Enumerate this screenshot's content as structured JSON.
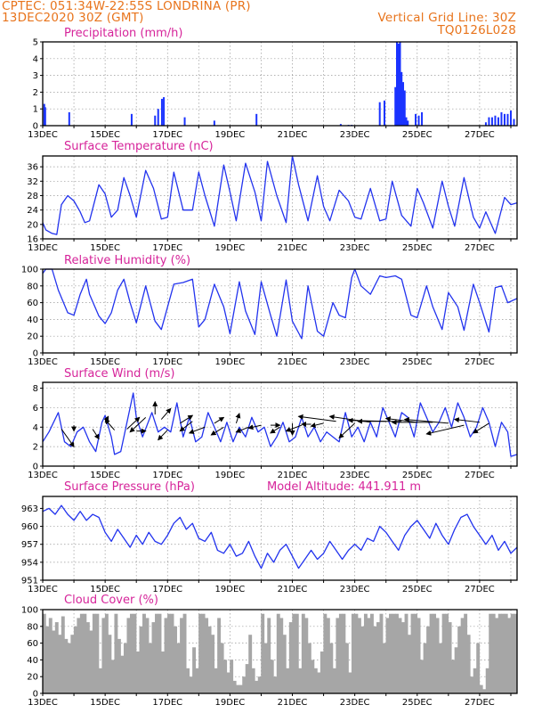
{
  "header": {
    "source_line": "CPTEC:   051:34W-22:55S   LONDRINA (PR)",
    "init_line": "13DEC2020 30Z (GMT)",
    "grid_note": "Vertical Grid Line: 30Z",
    "run_code": "TQ0126L028"
  },
  "colors": {
    "line": "#2233ee",
    "bar": "#1a33ff",
    "cloud": "#a6a6a6",
    "title": "#d6249a",
    "header": "#e8741c"
  },
  "date_labels": [
    "13DEC",
    "15DEC",
    "17DEC",
    "19DEC",
    "21DEC",
    "23DEC",
    "25DEC",
    "27DEC"
  ],
  "chart_data": [
    {
      "id": "precip",
      "type": "bar",
      "title": "Precipitation (mm/h)",
      "xlim": [
        0,
        15.2
      ],
      "ylim": [
        0,
        5
      ],
      "yticks": [
        0,
        1,
        2,
        3,
        4,
        5
      ],
      "x": [
        0.05,
        0.08,
        0.85,
        2.85,
        3.6,
        3.7,
        3.82,
        3.88,
        4.55,
        5.5,
        6.85,
        9.55,
        9.8,
        9.9,
        10.8,
        10.95,
        11.3,
        11.35,
        11.4,
        11.45,
        11.5,
        11.55,
        11.6,
        11.65,
        11.7,
        11.95,
        12.05,
        12.15,
        14.2,
        14.3,
        14.4,
        14.5,
        14.6,
        14.7,
        14.8,
        14.9,
        15.0,
        15.1
      ],
      "values": [
        1.3,
        1.1,
        0.8,
        0.7,
        0.6,
        1.0,
        1.6,
        1.7,
        0.5,
        0.3,
        0.7,
        0.1,
        0.05,
        0.05,
        1.4,
        1.5,
        2.3,
        5.0,
        4.9,
        5.0,
        3.2,
        2.6,
        2.1,
        0.5,
        0.3,
        0.7,
        0.6,
        0.8,
        0.2,
        0.5,
        0.5,
        0.6,
        0.5,
        0.8,
        0.7,
        0.7,
        0.9,
        0.4
      ]
    },
    {
      "id": "temp",
      "type": "line",
      "title": "Surface Temperature (nC)",
      "xlim": [
        0,
        15.2
      ],
      "ylim": [
        16,
        39
      ],
      "yticks": [
        16,
        20,
        24,
        28,
        32,
        36
      ],
      "x": [
        0,
        0.1,
        0.3,
        0.45,
        0.6,
        0.8,
        1.0,
        1.2,
        1.35,
        1.5,
        1.8,
        2.0,
        2.2,
        2.4,
        2.6,
        2.8,
        3.0,
        3.3,
        3.55,
        3.8,
        4.0,
        4.2,
        4.5,
        4.8,
        5.0,
        5.2,
        5.5,
        5.8,
        6.0,
        6.2,
        6.5,
        6.8,
        7.0,
        7.2,
        7.5,
        7.8,
        8.0,
        8.2,
        8.5,
        8.8,
        9.0,
        9.2,
        9.5,
        9.8,
        10.0,
        10.2,
        10.5,
        10.8,
        11.0,
        11.2,
        11.5,
        11.8,
        12.0,
        12.2,
        12.5,
        12.8,
        13.0,
        13.2,
        13.5,
        13.8,
        14.0,
        14.2,
        14.5,
        14.8,
        15.0,
        15.2
      ],
      "values": [
        20.5,
        18.5,
        17.5,
        17.2,
        25.5,
        28.0,
        26.5,
        23.5,
        20.5,
        21.0,
        31.0,
        28.5,
        22.0,
        24.0,
        33.0,
        28.0,
        22.0,
        35.0,
        30.0,
        21.5,
        22.0,
        34.5,
        24.0,
        24.0,
        34.5,
        28.0,
        19.5,
        36.5,
        29.0,
        21.0,
        37.0,
        29.0,
        21.0,
        37.5,
        28.0,
        20.5,
        39.0,
        31.0,
        21.0,
        33.5,
        25.0,
        21.0,
        29.5,
        26.5,
        22.0,
        21.5,
        30.0,
        21.0,
        21.5,
        32.0,
        22.5,
        19.5,
        30.0,
        26.0,
        19.0,
        32.0,
        25.0,
        19.5,
        33.0,
        22.0,
        19.0,
        23.5,
        17.5,
        27.5,
        25.5,
        26.0
      ]
    },
    {
      "id": "rh",
      "type": "line",
      "title": "Relative Humidity (%)",
      "xlim": [
        0,
        15.2
      ],
      "ylim": [
        0,
        100
      ],
      "yticks": [
        0,
        20,
        40,
        60,
        80,
        100
      ],
      "x": [
        0,
        0.1,
        0.3,
        0.5,
        0.8,
        1.0,
        1.2,
        1.4,
        1.5,
        1.8,
        2.0,
        2.2,
        2.4,
        2.6,
        2.8,
        3.0,
        3.3,
        3.6,
        3.8,
        4.0,
        4.2,
        4.5,
        4.8,
        5.0,
        5.2,
        5.5,
        5.8,
        6.0,
        6.3,
        6.5,
        6.8,
        7.0,
        7.3,
        7.5,
        7.8,
        8.0,
        8.3,
        8.5,
        8.8,
        9.0,
        9.3,
        9.5,
        9.7,
        9.9,
        10.0,
        10.2,
        10.5,
        10.8,
        11.0,
        11.3,
        11.5,
        11.8,
        12.0,
        12.3,
        12.5,
        12.8,
        13.0,
        13.3,
        13.5,
        13.8,
        14.0,
        14.3,
        14.5,
        14.7,
        14.9,
        15.2
      ],
      "values": [
        95,
        100,
        100,
        75,
        48,
        45,
        70,
        88,
        70,
        44,
        35,
        48,
        75,
        88,
        60,
        36,
        80,
        38,
        28,
        55,
        82,
        84,
        88,
        31,
        40,
        82,
        55,
        23,
        85,
        50,
        22,
        85,
        45,
        20,
        87,
        38,
        17,
        80,
        26,
        20,
        60,
        45,
        42,
        90,
        100,
        80,
        70,
        92,
        90,
        92,
        88,
        45,
        42,
        80,
        55,
        28,
        72,
        55,
        27,
        82,
        60,
        25,
        78,
        80,
        60,
        65
      ]
    },
    {
      "id": "wind",
      "type": "line",
      "title": "Surface Wind (m/s)",
      "xlim": [
        0,
        15.2
      ],
      "ylim": [
        0,
        8.6
      ],
      "yticks": [
        0,
        2,
        4,
        6,
        8
      ],
      "x": [
        0,
        0.2,
        0.5,
        0.7,
        0.9,
        1.1,
        1.3,
        1.5,
        1.7,
        1.9,
        2.0,
        2.2,
        2.3,
        2.5,
        2.7,
        2.9,
        3.0,
        3.2,
        3.5,
        3.7,
        3.9,
        4.1,
        4.3,
        4.5,
        4.7,
        4.9,
        5.1,
        5.3,
        5.5,
        5.7,
        5.9,
        6.1,
        6.3,
        6.5,
        6.7,
        6.9,
        7.1,
        7.3,
        7.5,
        7.7,
        7.9,
        8.1,
        8.3,
        8.5,
        8.7,
        8.9,
        9.1,
        9.3,
        9.5,
        9.7,
        9.9,
        10.1,
        10.3,
        10.5,
        10.7,
        10.9,
        11.1,
        11.3,
        11.5,
        11.7,
        11.9,
        12.1,
        12.3,
        12.5,
        12.7,
        12.9,
        13.1,
        13.3,
        13.5,
        13.7,
        13.9,
        14.1,
        14.3,
        14.5,
        14.7,
        14.9,
        15.0,
        15.2
      ],
      "values": [
        2.5,
        3.5,
        5.5,
        2.5,
        2.0,
        3.5,
        4.0,
        2.5,
        1.5,
        4.5,
        5.2,
        3.0,
        1.2,
        1.5,
        4.5,
        7.5,
        5.0,
        3.0,
        5.5,
        3.5,
        4.0,
        3.5,
        6.5,
        3.0,
        5.0,
        2.5,
        3.0,
        5.5,
        4.0,
        2.5,
        4.5,
        2.5,
        4.0,
        3.0,
        5.0,
        3.5,
        4.0,
        2.0,
        3.0,
        4.5,
        2.5,
        3.0,
        5.0,
        3.0,
        4.0,
        2.5,
        3.5,
        3.0,
        2.5,
        5.5,
        3.0,
        4.0,
        2.5,
        4.5,
        3.0,
        6.0,
        4.5,
        3.0,
        5.5,
        5.0,
        3.0,
        6.5,
        5.0,
        3.5,
        4.5,
        6.0,
        4.0,
        6.5,
        5.0,
        3.0,
        4.0,
        6.0,
        4.5,
        2.0,
        4.5,
        3.5,
        1.0,
        1.2
      ],
      "arrows": {
        "x": [
          0.6,
          1.0,
          1.6,
          2.0,
          2.3,
          2.7,
          3.0,
          3.3,
          3.6,
          3.8,
          4.0,
          4.4,
          4.8,
          5.2,
          5.5,
          5.8,
          6.2,
          6.6,
          7.0,
          7.3,
          7.6,
          8.0,
          8.3,
          8.6,
          9.0,
          9.4,
          10.0,
          10.5,
          11.0,
          11.5,
          12.0,
          12.5,
          13.0,
          13.5,
          14.0,
          14.3
        ],
        "y": [
          3.8,
          4.2,
          3.8,
          4.5,
          3.7,
          3.8,
          3.6,
          5.0,
          5.3,
          4.8,
          3.7,
          4.4,
          4.6,
          4.0,
          4.4,
          4.0,
          4.4,
          4.0,
          4.2,
          4.2,
          4.0,
          4.4,
          4.2,
          4.3,
          4.4,
          4.6,
          4.4,
          4.5,
          4.6,
          4.6,
          4.5,
          4.5,
          4.4,
          4.2,
          4.5,
          4.4
        ],
        "dx": [
          0.4,
          0.0,
          0.2,
          0.1,
          -0.3,
          0.4,
          0.3,
          -0.5,
          0.0,
          0.3,
          -0.3,
          0.4,
          -0.4,
          -0.5,
          0.3,
          -0.4,
          0.1,
          -0.4,
          -0.4,
          0.3,
          -0.3,
          0.0,
          -0.5,
          -0.3,
          -0.4,
          -1.2,
          -0.5,
          -1.3,
          -1.2,
          -1.4,
          -1.0,
          -1.3,
          -1.4,
          -1.2,
          -0.8,
          -0.5
        ],
        "dy": [
          -1.8,
          -0.6,
          -1.0,
          0.6,
          1.1,
          1.2,
          0.0,
          -1.5,
          1.3,
          1.1,
          -1.0,
          0.8,
          -1.0,
          -0.6,
          0.6,
          -0.8,
          1.0,
          -0.5,
          -0.3,
          0.0,
          -0.6,
          -1.2,
          -0.6,
          0.0,
          -0.3,
          0.5,
          -1.5,
          0.6,
          0.1,
          0.0,
          0.4,
          0.0,
          0.4,
          -0.9,
          0.3,
          -1.0
        ]
      }
    },
    {
      "id": "pres",
      "type": "line",
      "title": "Surface Pressure (hPa)",
      "annotation": "Model Altitude: 441.911 m",
      "xlim": [
        0,
        15.2
      ],
      "ylim": [
        951,
        965
      ],
      "yticks": [
        951,
        954,
        957,
        960,
        963
      ],
      "x": [
        0,
        0.2,
        0.4,
        0.6,
        0.8,
        1.0,
        1.2,
        1.4,
        1.6,
        1.8,
        2.0,
        2.2,
        2.4,
        2.6,
        2.8,
        3.0,
        3.2,
        3.4,
        3.6,
        3.8,
        4.0,
        4.2,
        4.4,
        4.6,
        4.8,
        5.0,
        5.2,
        5.4,
        5.6,
        5.8,
        6.0,
        6.2,
        6.4,
        6.6,
        6.8,
        7.0,
        7.2,
        7.4,
        7.6,
        7.8,
        8.0,
        8.2,
        8.4,
        8.6,
        8.8,
        9.0,
        9.2,
        9.4,
        9.6,
        9.8,
        10.0,
        10.2,
        10.4,
        10.6,
        10.8,
        11.0,
        11.2,
        11.4,
        11.6,
        11.8,
        12.0,
        12.2,
        12.4,
        12.6,
        12.8,
        13.0,
        13.2,
        13.4,
        13.6,
        13.8,
        14.0,
        14.2,
        14.4,
        14.6,
        14.8,
        15.0,
        15.2
      ],
      "values": [
        962.5,
        963.0,
        962.0,
        963.5,
        962.0,
        961.0,
        962.5,
        961.0,
        962.0,
        961.5,
        959.0,
        957.5,
        959.5,
        958.0,
        956.5,
        958.5,
        957.0,
        959.0,
        957.5,
        957.0,
        958.5,
        960.5,
        961.5,
        959.5,
        960.5,
        958.0,
        957.5,
        959.0,
        956.0,
        955.5,
        957.0,
        955.0,
        955.5,
        957.5,
        955.0,
        953.0,
        955.5,
        954.0,
        956.0,
        957.0,
        955.0,
        953.0,
        954.5,
        956.0,
        954.5,
        955.5,
        957.5,
        956.0,
        954.5,
        956.0,
        957.0,
        956.0,
        958.0,
        957.5,
        960.0,
        959.0,
        957.5,
        956.0,
        958.5,
        960.0,
        961.0,
        959.5,
        958.0,
        960.5,
        958.5,
        957.0,
        959.5,
        961.5,
        962.0,
        960.0,
        958.5,
        957.0,
        958.5,
        956.0,
        957.5,
        955.5,
        956.5
      ]
    },
    {
      "id": "cloud",
      "type": "bar",
      "title": "Cloud Cover (%)",
      "xlim": [
        0,
        15.2
      ],
      "ylim": [
        0,
        100
      ],
      "yticks": [
        0,
        20,
        40,
        60,
        80,
        100
      ],
      "x": [
        0.05,
        0.15,
        0.25,
        0.35,
        0.45,
        0.55,
        0.65,
        0.75,
        0.85,
        0.95,
        1.05,
        1.15,
        1.25,
        1.35,
        1.45,
        1.55,
        1.65,
        1.75,
        1.85,
        1.95,
        2.05,
        2.15,
        2.25,
        2.35,
        2.45,
        2.55,
        2.65,
        2.75,
        2.85,
        2.95,
        3.05,
        3.15,
        3.25,
        3.35,
        3.45,
        3.55,
        3.65,
        3.75,
        3.85,
        3.95,
        4.05,
        4.15,
        4.25,
        4.35,
        4.45,
        4.55,
        4.65,
        4.75,
        4.85,
        4.95,
        5.05,
        5.15,
        5.25,
        5.35,
        5.45,
        5.55,
        5.65,
        5.75,
        5.85,
        5.95,
        6.05,
        6.15,
        6.25,
        6.35,
        6.45,
        6.55,
        6.65,
        6.75,
        6.85,
        6.95,
        7.05,
        7.15,
        7.25,
        7.35,
        7.45,
        7.55,
        7.65,
        7.75,
        7.85,
        7.95,
        8.05,
        8.15,
        8.25,
        8.35,
        8.45,
        8.55,
        8.65,
        8.75,
        8.85,
        8.95,
        9.05,
        9.15,
        9.25,
        9.35,
        9.45,
        9.55,
        9.65,
        9.75,
        9.85,
        9.95,
        10.05,
        10.15,
        10.25,
        10.35,
        10.45,
        10.55,
        10.65,
        10.75,
        10.85,
        10.95,
        11.05,
        11.15,
        11.25,
        11.35,
        11.45,
        11.55,
        11.65,
        11.75,
        11.85,
        11.95,
        12.05,
        12.15,
        12.25,
        12.35,
        12.45,
        12.55,
        12.65,
        12.75,
        12.85,
        12.95,
        13.05,
        13.15,
        13.25,
        13.35,
        13.45,
        13.55,
        13.65,
        13.75,
        13.85,
        13.95,
        14.05,
        14.15,
        14.25,
        14.35,
        14.45,
        14.55,
        14.65,
        14.75,
        14.85,
        14.95,
        15.05,
        15.15
      ],
      "values": [
        95,
        80,
        90,
        75,
        85,
        70,
        92,
        65,
        60,
        70,
        80,
        90,
        95,
        95,
        85,
        75,
        95,
        95,
        30,
        90,
        95,
        70,
        40,
        95,
        65,
        45,
        60,
        90,
        95,
        95,
        50,
        80,
        95,
        90,
        60,
        85,
        95,
        95,
        50,
        90,
        95,
        95,
        80,
        60,
        90,
        95,
        30,
        20,
        55,
        30,
        95,
        95,
        90,
        80,
        70,
        30,
        90,
        60,
        40,
        25,
        40,
        15,
        10,
        10,
        20,
        35,
        70,
        30,
        15,
        20,
        95,
        60,
        90,
        40,
        20,
        95,
        90,
        70,
        30,
        85,
        95,
        95,
        30,
        95,
        90,
        60,
        40,
        30,
        25,
        50,
        95,
        90,
        60,
        30,
        90,
        95,
        95,
        60,
        25,
        95,
        95,
        90,
        80,
        95,
        90,
        95,
        80,
        85,
        95,
        60,
        90,
        95,
        95,
        95,
        90,
        85,
        95,
        70,
        95,
        95,
        90,
        40,
        60,
        80,
        95,
        95,
        90,
        60,
        95,
        95,
        85,
        40,
        55,
        80,
        90,
        95,
        70,
        20,
        30,
        60,
        10,
        5,
        30,
        95,
        95,
        90,
        95,
        95,
        95,
        90,
        95,
        95
      ]
    }
  ]
}
